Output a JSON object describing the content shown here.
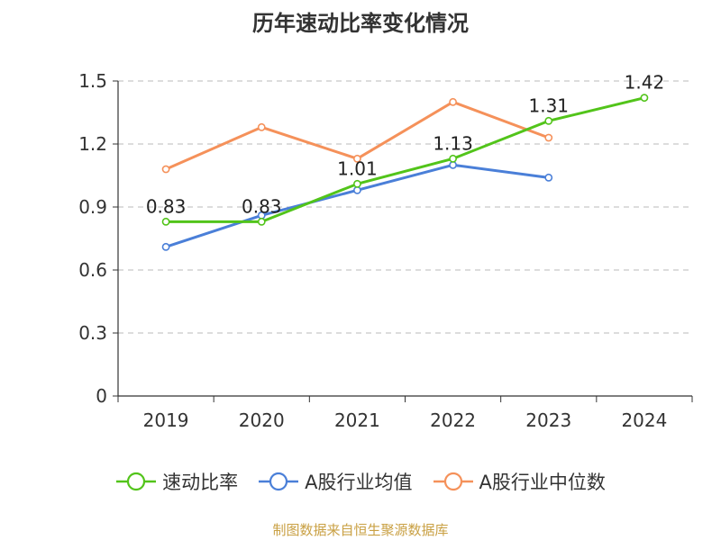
{
  "title": "历年速动比率变化情况",
  "source": "制图数据来自恒生聚源数据库",
  "chart_data": {
    "type": "line",
    "categories": [
      "2019",
      "2020",
      "2021",
      "2022",
      "2023",
      "2024"
    ],
    "ylim": [
      0,
      1.5
    ],
    "yticks": [
      "0",
      "0.3",
      "0.6",
      "0.9",
      "1.2",
      "1.5"
    ],
    "grid": true,
    "legend_position": "bottom",
    "series": [
      {
        "name": "速动比率",
        "color": "#52c41a",
        "values": [
          0.83,
          0.83,
          1.01,
          1.13,
          1.31,
          1.42
        ],
        "labels": [
          "0.83",
          "0.83",
          "1.01",
          "1.13",
          "1.31",
          "1.42"
        ]
      },
      {
        "name": "A股行业均值",
        "color": "#4a7fd8",
        "values": [
          0.71,
          0.86,
          0.98,
          1.1,
          1.04,
          null
        ]
      },
      {
        "name": "A股行业中位数",
        "color": "#f5915a",
        "values": [
          1.08,
          1.28,
          1.13,
          1.4,
          1.23,
          null
        ]
      }
    ]
  }
}
